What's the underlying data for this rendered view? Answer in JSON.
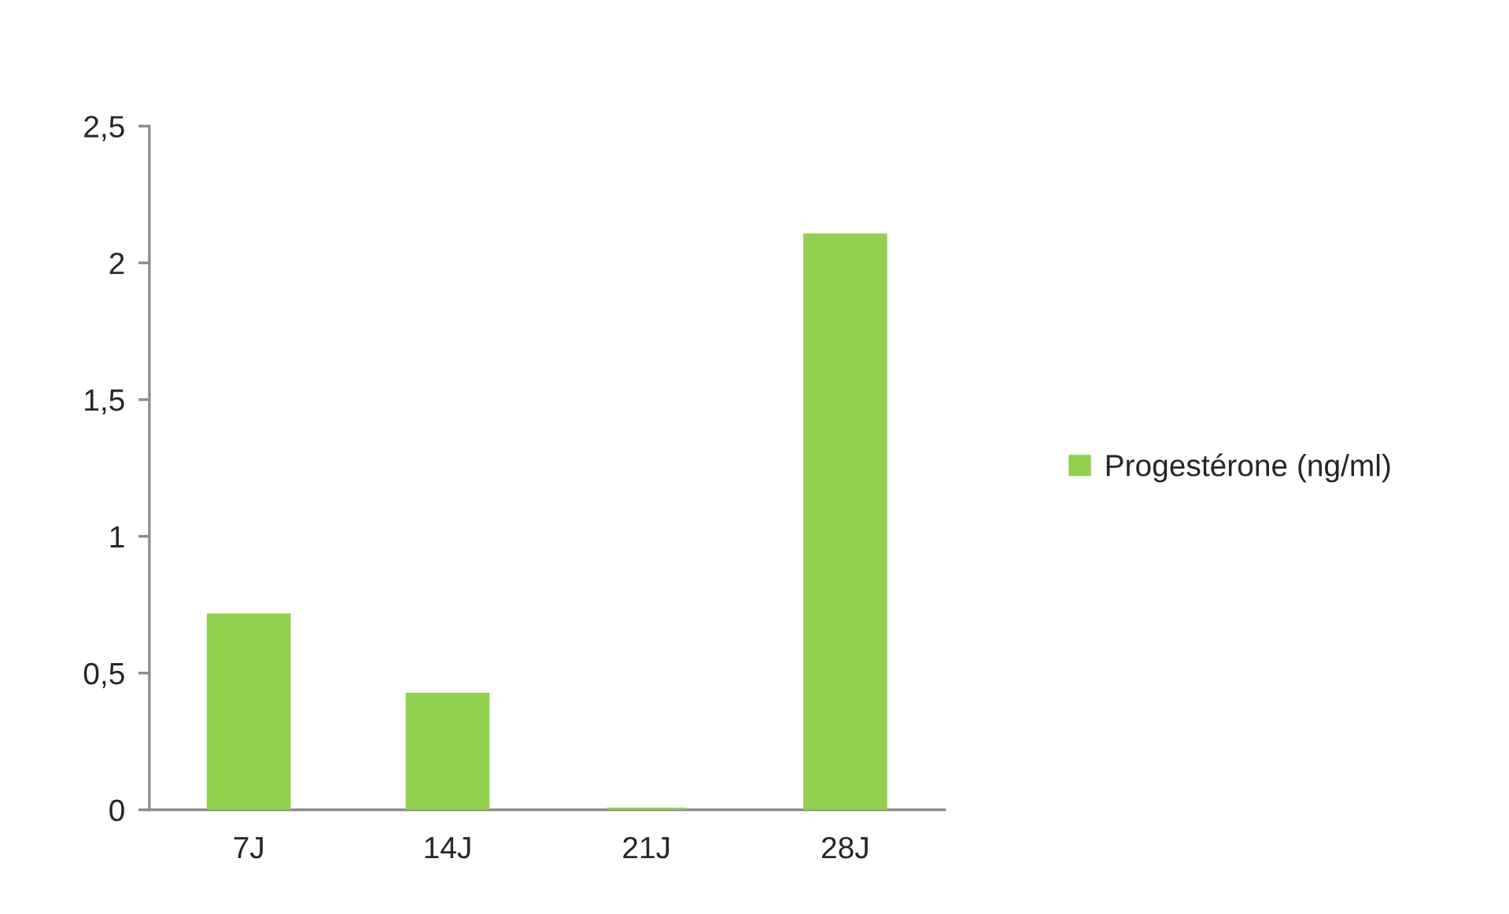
{
  "chart_data": {
    "type": "bar",
    "categories": [
      "7J",
      "14J",
      "21J",
      "28J"
    ],
    "series": [
      {
        "name": "Progestérone (ng/ml)",
        "color": "#92d050",
        "values": [
          0.71,
          0.42,
          0,
          2.1
        ]
      }
    ],
    "ylim": [
      0,
      2.5
    ],
    "yticks": [
      0,
      {
        "value": 0.5,
        "label": "0,5"
      },
      1,
      {
        "value": 1.5,
        "label": "1,5"
      },
      2,
      {
        "value": 2.5,
        "label": "2,5"
      }
    ],
    "legend": "right"
  }
}
